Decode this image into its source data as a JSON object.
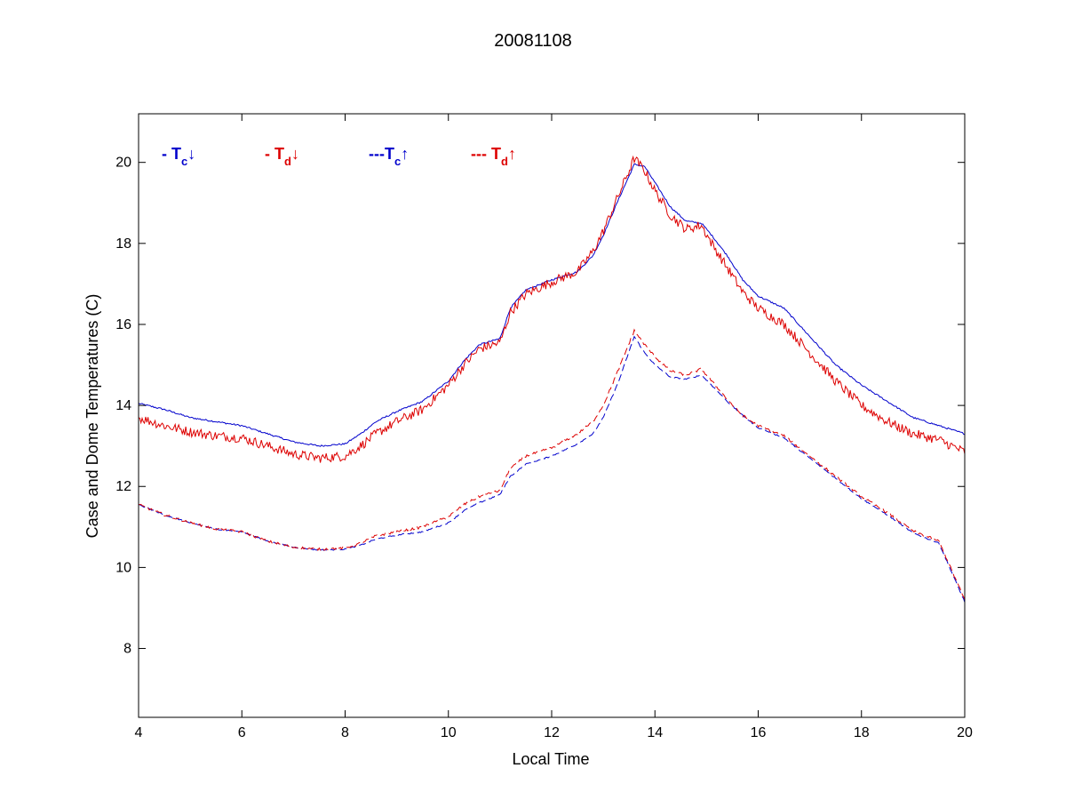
{
  "chart_data": {
    "type": "line",
    "title": "20081108",
    "xlabel": "Local Time",
    "ylabel": "Case and Dome Temperatures (C)",
    "xlim": [
      4,
      20
    ],
    "ylim": [
      6.3,
      21.2
    ],
    "xticks": [
      4,
      6,
      8,
      10,
      12,
      14,
      16,
      18,
      20
    ],
    "yticks": [
      8,
      10,
      12,
      14,
      16,
      18,
      20
    ],
    "grid": false,
    "legend_position": "top-left",
    "legend": [
      {
        "prefix": "- ",
        "main": "T",
        "sub": "c",
        "arrow": "↓",
        "color": "#0000cc"
      },
      {
        "prefix": "- ",
        "main": "T",
        "sub": "d",
        "arrow": "↓",
        "color": "#dd0000"
      },
      {
        "prefix": "---",
        "main": "T",
        "sub": "c",
        "arrow": "↑",
        "color": "#0000cc"
      },
      {
        "prefix": "--- ",
        "main": "T",
        "sub": "d",
        "arrow": "↑",
        "color": "#dd0000"
      }
    ],
    "series": [
      {
        "color": "#0000cc",
        "dash": false,
        "noise": 0.02,
        "x": [
          4,
          4.5,
          5,
          5.5,
          6,
          6.5,
          7,
          7.5,
          8,
          8.3,
          8.6,
          9,
          9.5,
          10,
          10.3,
          10.6,
          11,
          11.2,
          11.5,
          12,
          12.5,
          12.8,
          13,
          13.3,
          13.6,
          13.8,
          14,
          14.3,
          14.6,
          14.9,
          15.1,
          15.4,
          15.7,
          16,
          16.5,
          17,
          17.5,
          18,
          18.5,
          19,
          19.5,
          20
        ],
        "y": [
          14.05,
          13.9,
          13.7,
          13.6,
          13.5,
          13.3,
          13.1,
          13.0,
          13.05,
          13.3,
          13.6,
          13.85,
          14.1,
          14.6,
          15.1,
          15.5,
          15.65,
          16.4,
          16.85,
          17.1,
          17.3,
          17.7,
          18.2,
          19.1,
          19.95,
          19.9,
          19.5,
          18.9,
          18.55,
          18.5,
          18.2,
          17.7,
          17.1,
          16.7,
          16.4,
          15.7,
          15.0,
          14.5,
          14.1,
          13.7,
          13.5,
          13.3
        ]
      },
      {
        "color": "#dd0000",
        "dash": false,
        "noise": 0.12,
        "x": [
          4,
          4.5,
          5,
          5.5,
          6,
          6.5,
          7,
          7.5,
          8,
          8.3,
          8.6,
          9,
          9.5,
          10,
          10.3,
          10.6,
          11,
          11.2,
          11.5,
          12,
          12.5,
          12.8,
          13,
          13.3,
          13.6,
          13.8,
          14,
          14.3,
          14.6,
          14.9,
          15.1,
          15.4,
          15.7,
          16,
          16.5,
          17,
          17.5,
          18,
          18.5,
          19,
          19.5,
          20
        ],
        "y": [
          13.7,
          13.5,
          13.35,
          13.25,
          13.2,
          13.0,
          12.8,
          12.7,
          12.75,
          13.0,
          13.3,
          13.6,
          13.9,
          14.5,
          15.0,
          15.4,
          15.55,
          16.3,
          16.75,
          17.05,
          17.3,
          17.8,
          18.3,
          19.2,
          20.1,
          19.8,
          19.3,
          18.7,
          18.35,
          18.45,
          18.0,
          17.4,
          16.8,
          16.4,
          16.0,
          15.3,
          14.6,
          14.0,
          13.6,
          13.3,
          13.15,
          12.85
        ]
      },
      {
        "color": "#0000cc",
        "dash": true,
        "noise": 0.015,
        "x": [
          4,
          4.5,
          5,
          5.5,
          6,
          6.5,
          7,
          7.5,
          8,
          8.3,
          8.6,
          9,
          9.5,
          10,
          10.3,
          10.6,
          11,
          11.2,
          11.5,
          12,
          12.5,
          12.8,
          13,
          13.3,
          13.6,
          13.8,
          14,
          14.3,
          14.6,
          14.9,
          15.1,
          15.4,
          15.7,
          16,
          16.5,
          17,
          17.5,
          18,
          18.5,
          19,
          19.5,
          20
        ],
        "y": [
          11.55,
          11.3,
          11.1,
          10.95,
          10.88,
          10.65,
          10.5,
          10.43,
          10.45,
          10.55,
          10.7,
          10.8,
          10.88,
          11.1,
          11.4,
          11.6,
          11.8,
          12.25,
          12.55,
          12.75,
          13.05,
          13.3,
          13.7,
          14.6,
          15.7,
          15.3,
          15.0,
          14.7,
          14.65,
          14.75,
          14.5,
          14.1,
          13.75,
          13.45,
          13.2,
          12.7,
          12.2,
          11.7,
          11.3,
          10.85,
          10.6,
          9.15
        ]
      },
      {
        "color": "#dd0000",
        "dash": true,
        "noise": 0.03,
        "x": [
          4,
          4.5,
          5,
          5.5,
          6,
          6.5,
          7,
          7.5,
          8,
          8.3,
          8.6,
          9,
          9.5,
          10,
          10.3,
          10.6,
          11,
          11.2,
          11.5,
          12,
          12.5,
          12.8,
          13,
          13.3,
          13.6,
          13.8,
          14,
          14.3,
          14.6,
          14.9,
          15.1,
          15.4,
          15.7,
          16,
          16.5,
          17,
          17.5,
          18,
          18.5,
          19,
          19.5,
          20
        ],
        "y": [
          11.55,
          11.3,
          11.1,
          10.95,
          10.88,
          10.65,
          10.5,
          10.45,
          10.48,
          10.6,
          10.78,
          10.88,
          11.0,
          11.25,
          11.55,
          11.75,
          11.9,
          12.45,
          12.75,
          12.95,
          13.3,
          13.6,
          14.0,
          14.9,
          15.85,
          15.5,
          15.2,
          14.85,
          14.75,
          14.9,
          14.6,
          14.15,
          13.75,
          13.5,
          13.25,
          12.75,
          12.25,
          11.75,
          11.35,
          10.9,
          10.65,
          9.2
        ]
      }
    ]
  }
}
